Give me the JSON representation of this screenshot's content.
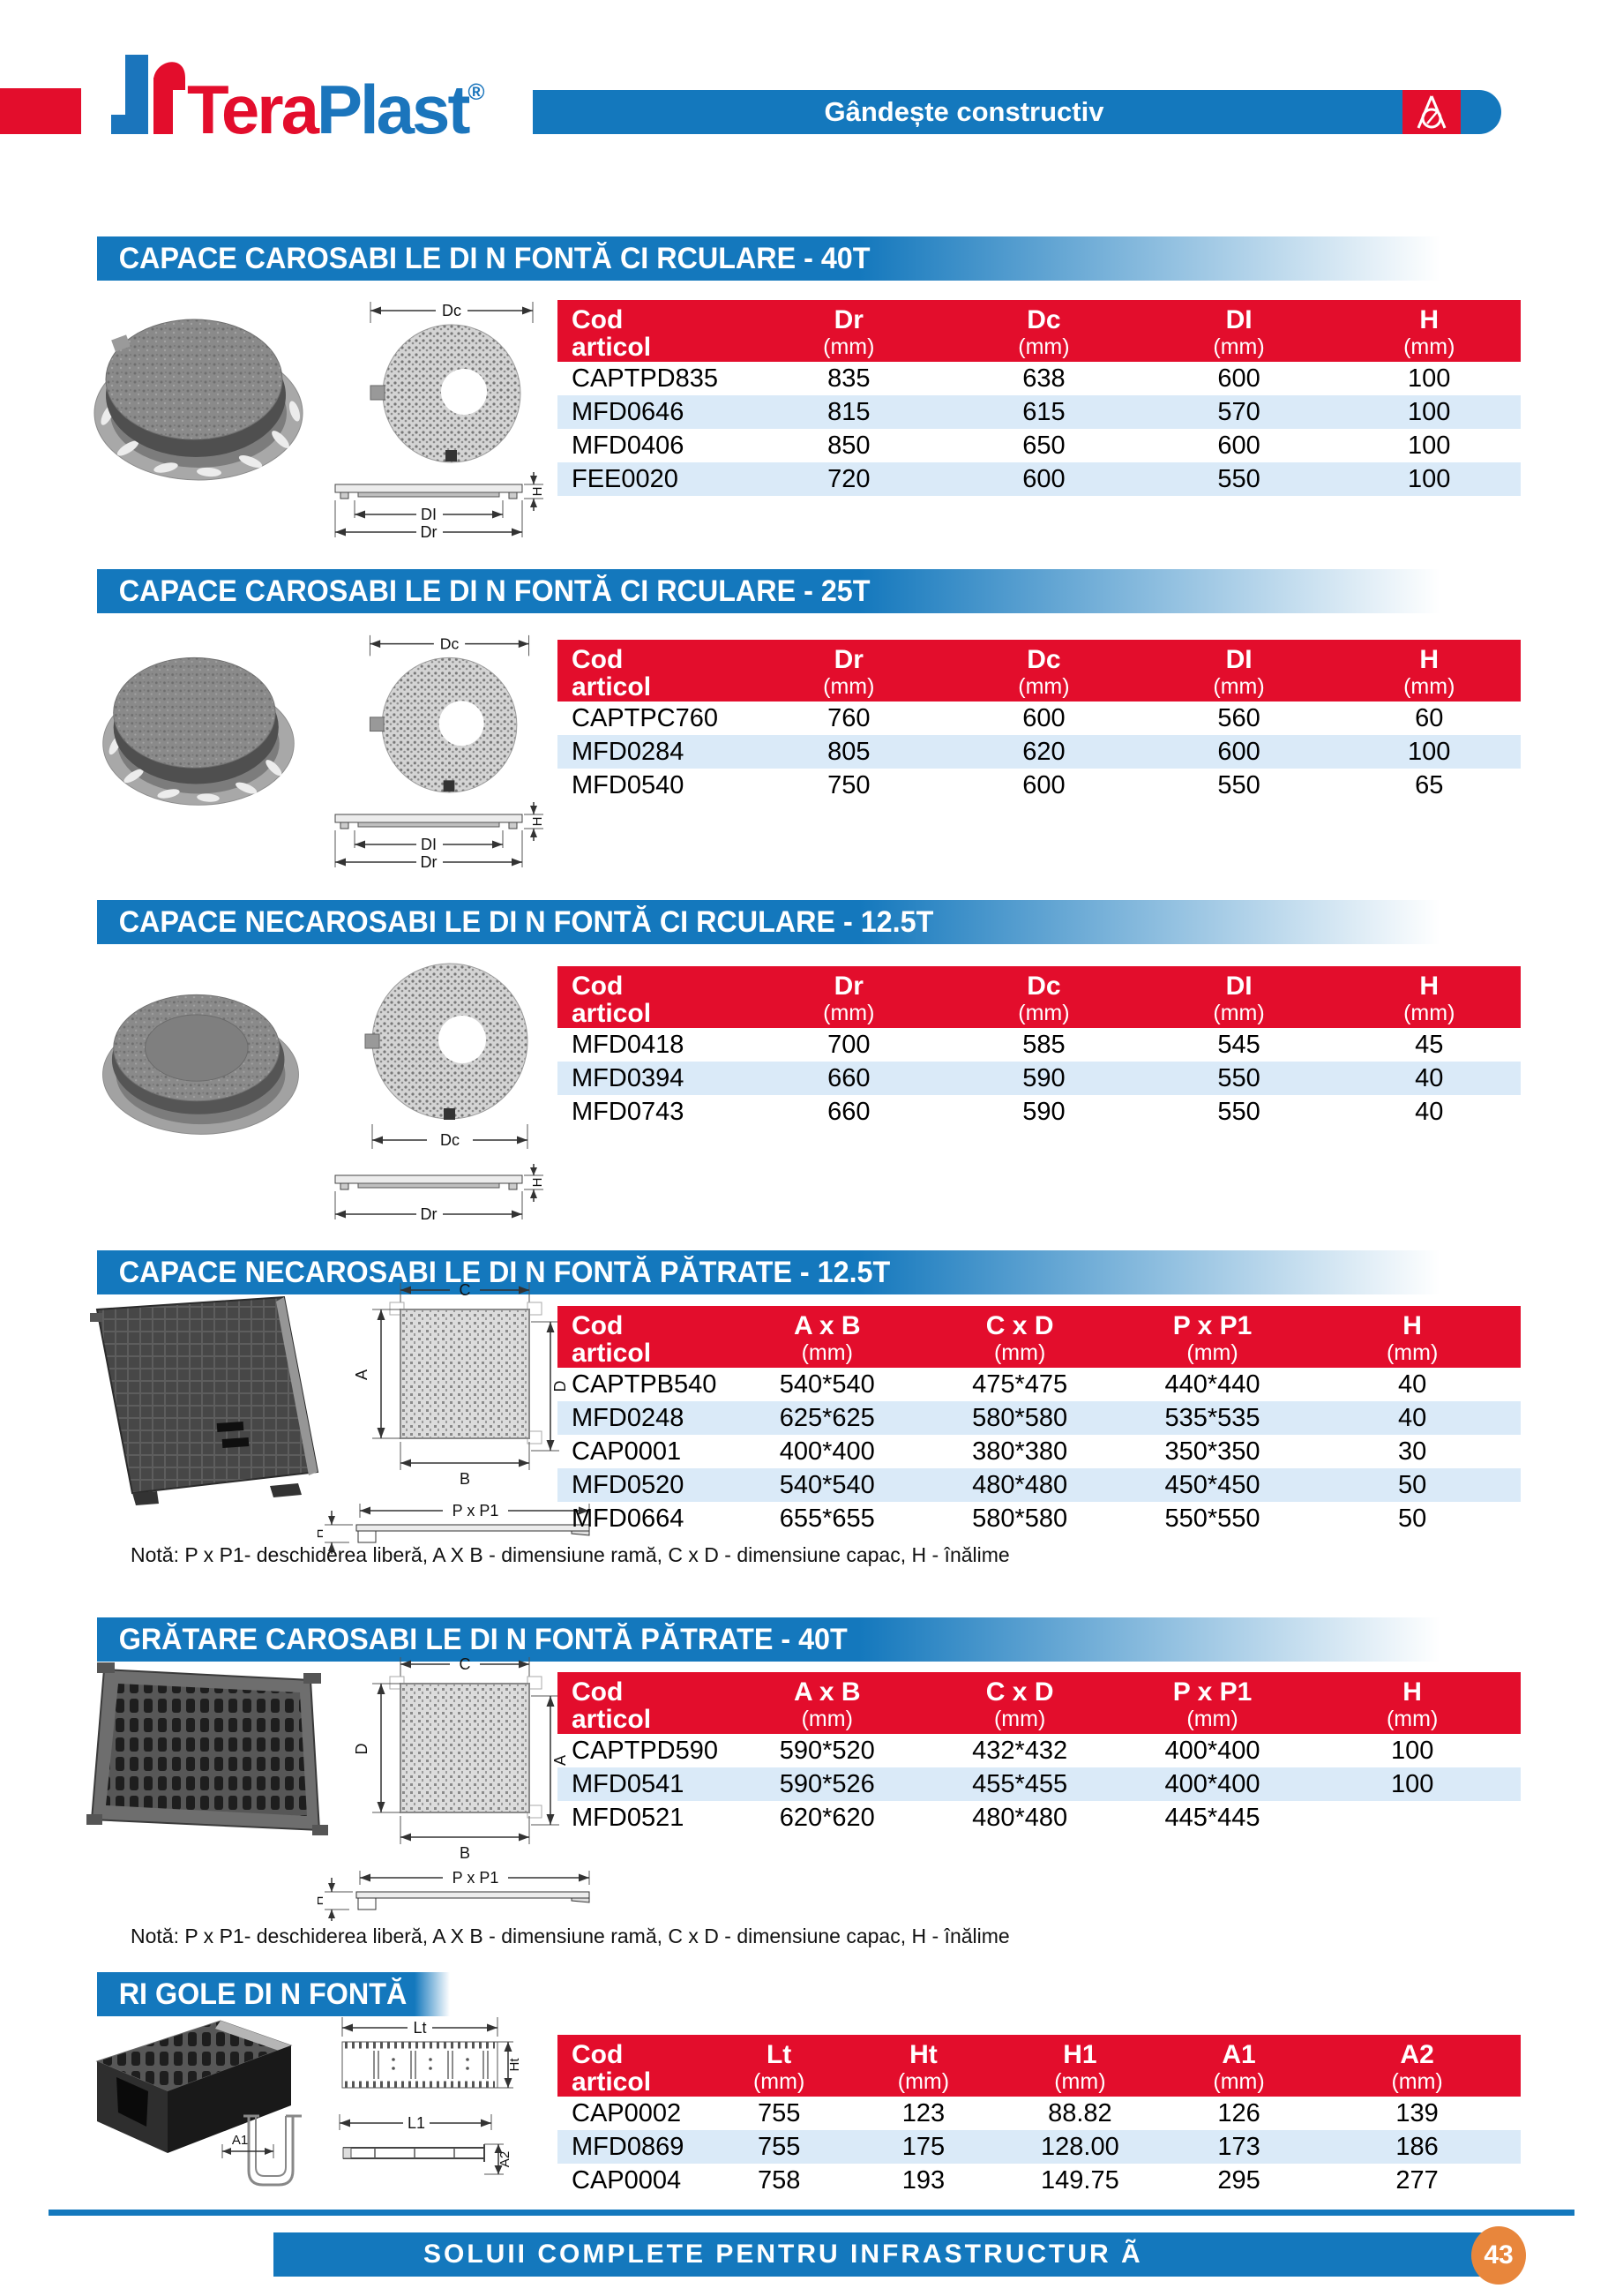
{
  "header": {
    "logo": {
      "part1": "Tera",
      "part2": "Plast",
      "registered": "®"
    },
    "tagline": "Gândește constructiv"
  },
  "colors": {
    "brand_red": "#e30d2c",
    "brand_blue": "#1478bd",
    "row_alt_blue": "#daeaf8",
    "badge_orange": "#e8863c"
  },
  "sections": [
    {
      "title": "CAPACE CAROSABI LE DI N FONTĂ CI RCULARE - 40T",
      "drawing_labels": {
        "dc": "Dc",
        "di": "DI",
        "dr": "Dr",
        "h": "H"
      },
      "table": {
        "col0": {
          "line1": "Cod",
          "line2": "articol"
        },
        "columns": [
          {
            "label": "Dr",
            "unit": "(mm)"
          },
          {
            "label": "Dc",
            "unit": "(mm)"
          },
          {
            "label": "DI",
            "unit": "(mm)"
          },
          {
            "label": "H",
            "unit": "(mm)"
          }
        ],
        "rows": [
          [
            "CAPTPD835",
            "835",
            "638",
            "600",
            "100"
          ],
          [
            "MFD0646",
            "815",
            "615",
            "570",
            "100"
          ],
          [
            "MFD0406",
            "850",
            "650",
            "600",
            "100"
          ],
          [
            "FEE0020",
            "720",
            "600",
            "550",
            "100"
          ]
        ]
      }
    },
    {
      "title": "CAPACE CAROSABI LE DI N FONTĂ CI RCULARE - 25T",
      "drawing_labels": {
        "dc": "Dc",
        "di": "DI",
        "dr": "Dr",
        "h": "H"
      },
      "table": {
        "col0": {
          "line1": "Cod",
          "line2": "articol"
        },
        "columns": [
          {
            "label": "Dr",
            "unit": "(mm)"
          },
          {
            "label": "Dc",
            "unit": "(mm)"
          },
          {
            "label": "DI",
            "unit": "(mm)"
          },
          {
            "label": "H",
            "unit": "(mm)"
          }
        ],
        "rows": [
          [
            "CAPTPC760",
            "760",
            "600",
            "560",
            "60"
          ],
          [
            "MFD0284",
            "805",
            "620",
            "600",
            "100"
          ],
          [
            "MFD0540",
            "750",
            "600",
            "550",
            "65"
          ]
        ]
      }
    },
    {
      "title": "CAPACE NECAROSABI LE DI N FONTĂ CI RCULARE - 12.5T",
      "drawing_labels": {
        "dc": "Dc",
        "dr": "Dr",
        "h": "H"
      },
      "table": {
        "col0": {
          "line1": "Cod",
          "line2": "articol"
        },
        "columns": [
          {
            "label": "Dr",
            "unit": "(mm)"
          },
          {
            "label": "Dc",
            "unit": "(mm)"
          },
          {
            "label": "DI",
            "unit": "(mm)"
          },
          {
            "label": "H",
            "unit": "(mm)"
          }
        ],
        "rows": [
          [
            "MFD0418",
            "700",
            "585",
            "545",
            "45"
          ],
          [
            "MFD0394",
            "660",
            "590",
            "550",
            "40"
          ],
          [
            "MFD0743",
            "660",
            "590",
            "550",
            "40"
          ]
        ]
      }
    },
    {
      "title": "CAPACE NECAROSABI LE DI N FONTĂ PĂTRATE - 12.5T",
      "drawing_labels": {
        "c": "C",
        "a": "A",
        "d": "D",
        "b": "B",
        "p": "P x P1",
        "h": "H"
      },
      "note": "Notă: P x P1- deschiderea liberă, A X B - dimensiune ramă, C x D - dimensiune capac, H - înălime",
      "table": {
        "col0": {
          "line1": "Cod",
          "line2": "articol"
        },
        "columns": [
          {
            "label": "A x B",
            "unit": "(mm)"
          },
          {
            "label": "C x D",
            "unit": "(mm)"
          },
          {
            "label": "P x P1",
            "unit": "(mm)"
          },
          {
            "label": "H",
            "unit": "(mm)"
          }
        ],
        "rows": [
          [
            "CAPTPB540",
            "540*540",
            "475*475",
            "440*440",
            "40"
          ],
          [
            "MFD0248",
            "625*625",
            "580*580",
            "535*535",
            "40"
          ],
          [
            "CAP0001",
            "400*400",
            "380*380",
            "350*350",
            "30"
          ],
          [
            "MFD0520",
            "540*540",
            "480*480",
            "450*450",
            "50"
          ],
          [
            "MFD0664",
            "655*655",
            "580*580",
            "550*550",
            "50"
          ]
        ]
      }
    },
    {
      "title": "GRĂTARE CAROSABI LE DI N FONTĂ PĂTRATE - 40T",
      "drawing_labels": {
        "c": "C",
        "d": "D",
        "a": "A",
        "b": "B",
        "p": "P x P1",
        "h": "H"
      },
      "note": "Notă: P x P1- deschiderea liberă, A X B - dimensiune ramă, C x D - dimensiune capac, H - înălime",
      "table": {
        "col0": {
          "line1": "Cod",
          "line2": "articol"
        },
        "columns": [
          {
            "label": "A x B",
            "unit": "(mm)"
          },
          {
            "label": "C x D",
            "unit": "(mm)"
          },
          {
            "label": "P x P1",
            "unit": "(mm)"
          },
          {
            "label": "H",
            "unit": "(mm)"
          }
        ],
        "rows": [
          [
            "CAPTPD590",
            "590*520",
            "432*432",
            "400*400",
            "100"
          ],
          [
            "MFD0541",
            "590*526",
            "455*455",
            "400*400",
            "100"
          ],
          [
            "MFD0521",
            "620*620",
            "480*480",
            "445*445",
            ""
          ]
        ]
      }
    },
    {
      "title": "RI GOLE DI N FONTĂ",
      "drawing_labels": {
        "lt": "Lt",
        "ht": "Ht",
        "l1": "L1",
        "a1": "A1",
        "a2": "A2"
      },
      "table": {
        "col0": {
          "line1": "Cod",
          "line2": "articol"
        },
        "columns": [
          {
            "label": "Lt",
            "unit": "(mm)"
          },
          {
            "label": "Ht",
            "unit": "(mm)"
          },
          {
            "label": "H1",
            "unit": "(mm)"
          },
          {
            "label": "A1",
            "unit": "(mm)"
          },
          {
            "label": "A2",
            "unit": "(mm)"
          }
        ],
        "rows": [
          [
            "CAP0002",
            "755",
            "123",
            "88.82",
            "126",
            "139"
          ],
          [
            "MFD0869",
            "755",
            "175",
            "128.00",
            "173",
            "186"
          ],
          [
            "CAP0004",
            "758",
            "193",
            "149.75",
            "295",
            "277"
          ]
        ]
      }
    }
  ],
  "footer": {
    "text": "SOLUII COMPLETE PENTRU INFRASTRUCTUR Ã",
    "page": "43"
  }
}
